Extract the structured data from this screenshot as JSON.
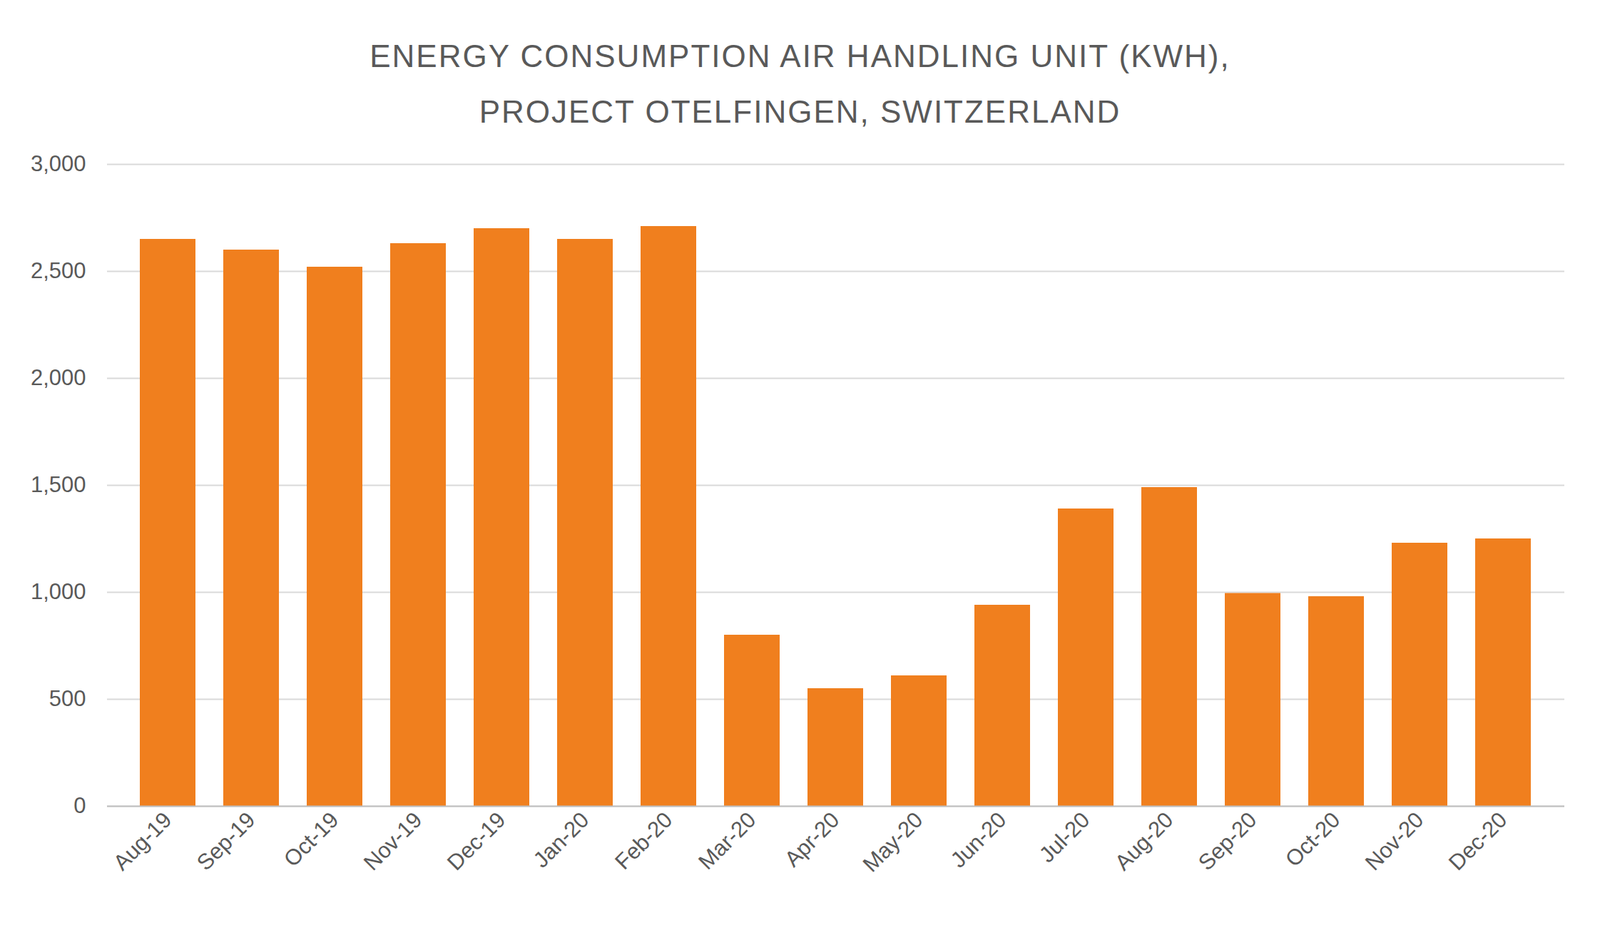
{
  "chart_data": {
    "type": "bar",
    "title": "ENERGY CONSUMPTION AIR HANDLING UNIT (KWH),\nPROJECT OTELFINGEN, SWITZERLAND",
    "categories": [
      "Aug-19",
      "Sep-19",
      "Oct-19",
      "Nov-19",
      "Dec-19",
      "Jan-20",
      "Feb-20",
      "Mar-20",
      "Apr-20",
      "May-20",
      "Jun-20",
      "Jul-20",
      "Aug-20",
      "Sep-20",
      "Oct-20",
      "Nov-20",
      "Dec-20"
    ],
    "values": [
      2650,
      2600,
      2520,
      2630,
      2700,
      2650,
      2710,
      800,
      550,
      610,
      940,
      1390,
      1490,
      995,
      980,
      1230,
      1250
    ],
    "color": "#f07f1e",
    "ylim": [
      0,
      3000
    ],
    "yticks": [
      0,
      500,
      1000,
      1500,
      2000,
      2500,
      3000
    ],
    "grid": true
  }
}
